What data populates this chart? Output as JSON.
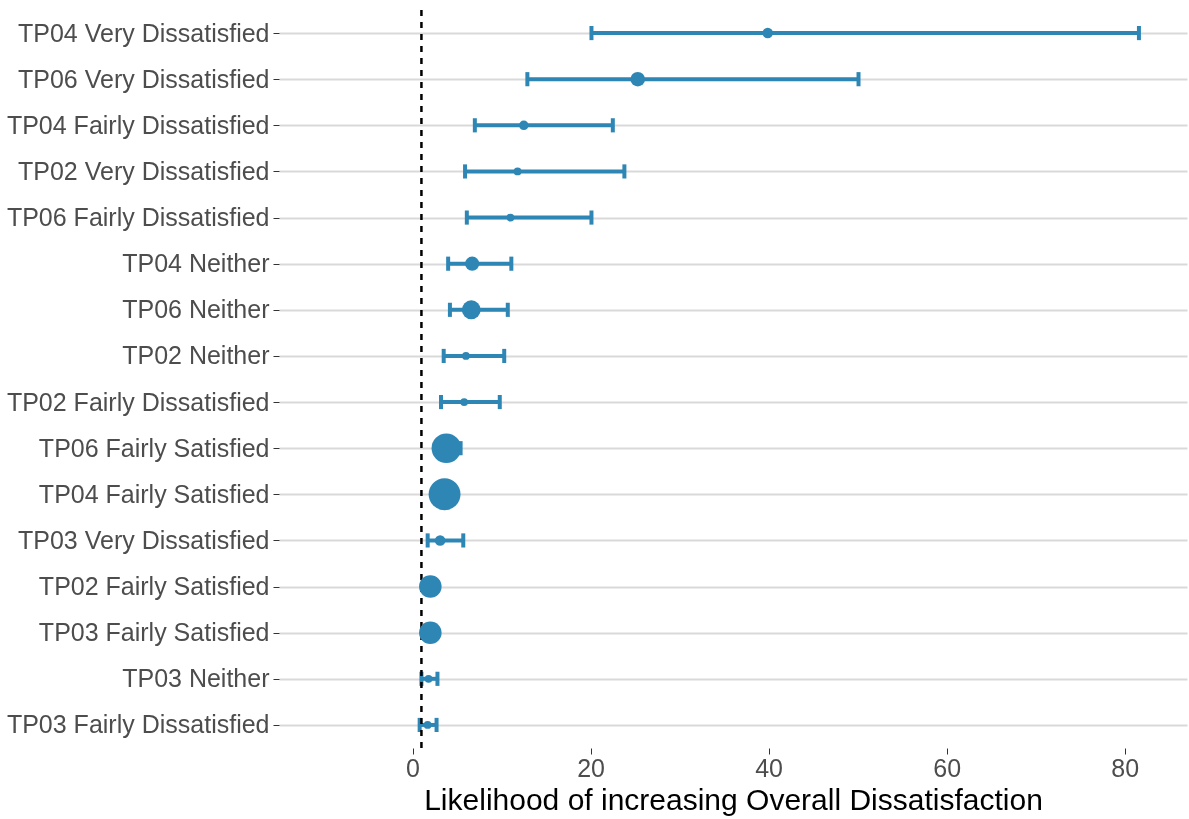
{
  "chart_data": {
    "type": "scatter",
    "orientation": "horizontal",
    "xlabel": "Likelihood of increasing Overall Dissatisfaction",
    "categories": [
      "TP04 Very Dissatisfied",
      "TP06 Very Dissatisfied",
      "TP04 Fairly Dissatisfied",
      "TP02 Very Dissatisfied",
      "TP06 Fairly Dissatisfied",
      "TP04 Neither",
      "TP06 Neither",
      "TP02 Neither",
      "TP02 Fairly Dissatisfied",
      "TP06 Fairly Satisfied",
      "TP04 Fairly Satisfied",
      "TP03 Very Dissatisfied",
      "TP02 Fairly Satisfied",
      "TP03 Fairly Satisfied",
      "TP03 Neither",
      "TP03 Fairly Dissatisfied"
    ],
    "values": [
      39.9,
      25.3,
      12.5,
      11.8,
      11.0,
      6.7,
      6.6,
      6.0,
      5.8,
      3.8,
      3.6,
      3.1,
      2.0,
      2.0,
      1.8,
      1.7
    ],
    "errors": [
      [
        20.1,
        81.6
      ],
      [
        12.9,
        50.1
      ],
      [
        7.0,
        22.5
      ],
      [
        5.9,
        23.8
      ],
      [
        6.1,
        20.1
      ],
      [
        4.0,
        11.1
      ],
      [
        4.2,
        10.7
      ],
      [
        3.5,
        10.3
      ],
      [
        3.2,
        9.8
      ],
      [
        3.8,
        5.4
      ],
      null,
      [
        1.7,
        5.7
      ],
      null,
      null,
      [
        1.0,
        2.8
      ],
      [
        0.8,
        2.7
      ]
    ],
    "sizes": [
      0.11,
      0.21,
      0.09,
      0.06,
      0.06,
      0.2,
      0.35,
      0.06,
      0.06,
      0.86,
      1,
      0.11,
      0.5,
      0.5,
      0.06,
      0.06
    ],
    "color": "#2e86b5",
    "marker": "circle",
    "xlim": [
      -15,
      87
    ],
    "xticks": [
      0,
      20,
      40,
      60,
      80
    ],
    "ref_lines": [
      {
        "axis": "x",
        "value": 1,
        "line_style": "dashed",
        "color": "#000000"
      }
    ],
    "grid": "y",
    "legend": false
  }
}
